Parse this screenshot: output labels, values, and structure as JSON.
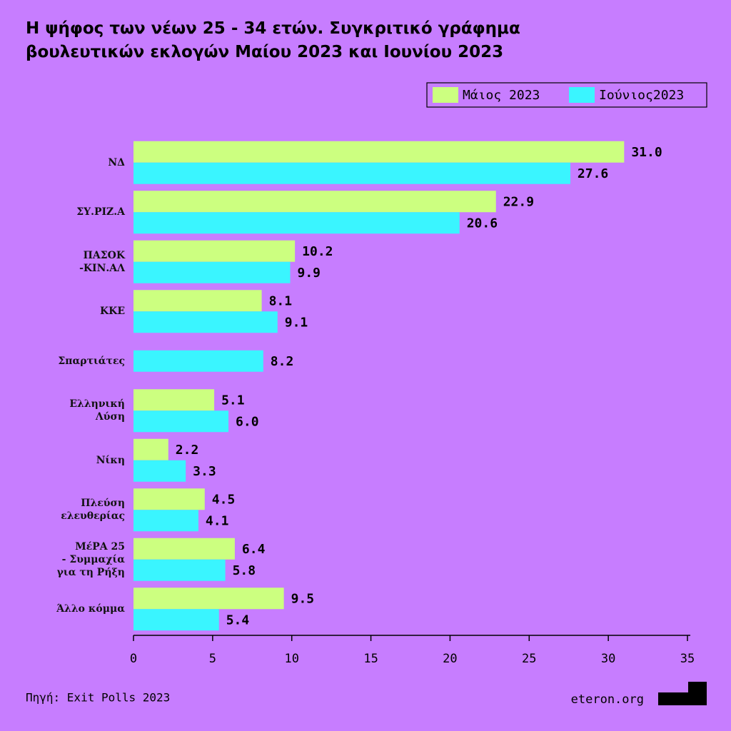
{
  "chart_data": {
    "type": "bar",
    "orientation": "horizontal",
    "title": "Η ψήφος των νέων 25 - 34 ετών. Συγκριτικό γράφημα\nβουλευτικών εκλογών Μαίου 2023 και Ιουνίου 2023",
    "categories": [
      "ΝΔ",
      "ΣΥ.ΡΙΖ.Α",
      "ΠΑΣΟΚ\n-ΚΙΝ.ΑΛ",
      "ΚΚΕ",
      "Σπαρτιάτες",
      "Ελληνική\nΛύση",
      "Νίκη",
      "Πλεύση\nελευθερίας",
      "ΜέΡΑ 25\n-  Συμμαχία\nγια τη Ρήξη",
      "Άλλο κόμμα"
    ],
    "series": [
      {
        "name": "Μάιος 2023",
        "color": "#ccff80",
        "values": [
          31.0,
          22.9,
          10.2,
          8.1,
          null,
          5.1,
          2.2,
          4.5,
          6.4,
          9.5
        ],
        "value_labels": [
          "31.0",
          "22.9",
          "10.2",
          "8.1",
          null,
          "5.1",
          "2.2",
          "4.5",
          "6.4",
          "9.5"
        ]
      },
      {
        "name": "Ιούνιος2023",
        "color": "#3af5ff",
        "values": [
          27.6,
          20.6,
          9.9,
          9.1,
          8.2,
          6.0,
          3.3,
          4.1,
          5.8,
          5.4
        ],
        "value_labels": [
          "27.6",
          "20.6",
          "9.9",
          "9.1",
          "8.2",
          "6.0",
          "3.3",
          "4.1",
          "5.8",
          "5.4"
        ]
      }
    ],
    "xlim": [
      0,
      35
    ],
    "xticks": [
      0,
      5,
      10,
      15,
      20,
      25,
      30,
      35
    ],
    "legend": "top-right",
    "source": "Πηγή: Exit Polls 2023",
    "brand": "eteron.org"
  }
}
